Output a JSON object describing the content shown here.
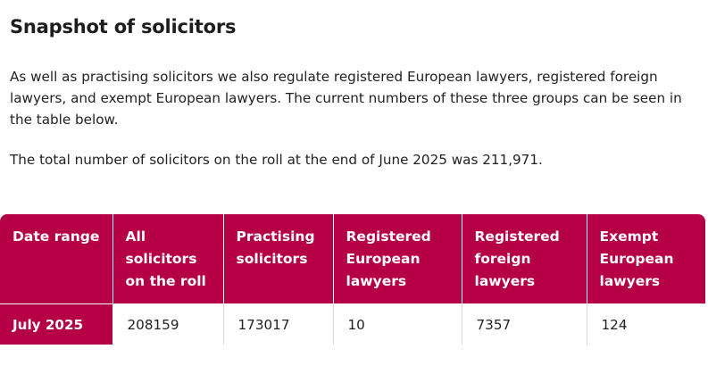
{
  "heading": "Snapshot of solicitors",
  "intro": "As well as practising solicitors we also regulate registered European lawyers, registered foreign lawyers, and exempt European lawyers. The current numbers of these three groups can be seen in the table below.",
  "total": "The total number of solicitors on the roll at the end of June 2025 was 211,971.",
  "table": {
    "headers": [
      "Date range",
      "All solicitors on the roll",
      "Practising solicitors",
      "Registered European lawyers",
      "Registered foreign lawyers",
      "Exempt European lawyers"
    ],
    "rows": [
      {
        "date": "July 2025",
        "all": "208159",
        "practising": "173017",
        "european": "10",
        "foreign": "7357",
        "exempt": "124"
      }
    ]
  },
  "colors": {
    "header_bg": "#b50046",
    "header_text": "#ffffff"
  }
}
